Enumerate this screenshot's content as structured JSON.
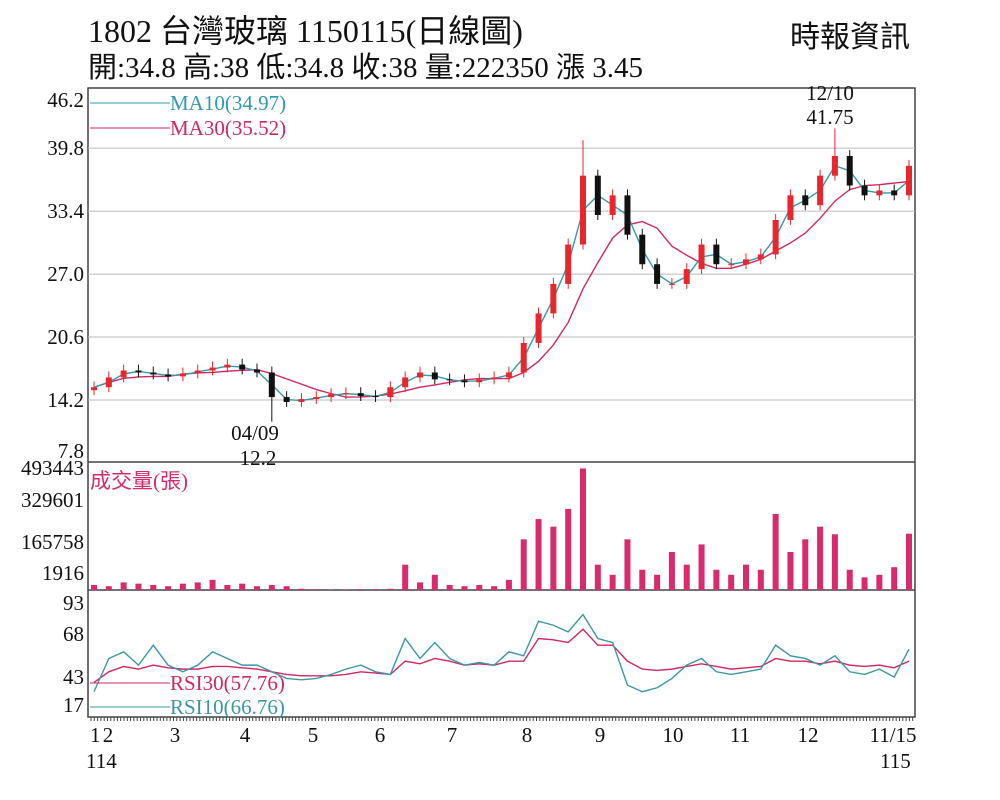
{
  "header": {
    "title": "1802  台灣玻璃 1150115(日線圖)",
    "source": "時報資訊",
    "ohlc": "開:34.8 高:38 低:34.8 收:38 量:222350 漲 3.45"
  },
  "colors": {
    "up": "#e8262c",
    "down": "#111111",
    "ma10": "#2f9ab0",
    "ma30": "#d2275f",
    "volume": "#d92a6e",
    "rsi30": "#d2275f",
    "rsi10": "#3b97a8",
    "grid": "#bbbbbb"
  },
  "chart_data": {
    "type": "candlestick",
    "price_axis": {
      "ticks": [
        "46.2",
        "39.8",
        "33.4",
        "27.0",
        "20.6",
        "14.2",
        "7.8"
      ],
      "ylim": [
        7.8,
        46.2
      ]
    },
    "volume_axis": {
      "ticks": [
        "493443",
        "329601",
        "165758",
        "1916"
      ],
      "label": "成交量(張)"
    },
    "rsi_axis": {
      "ticks": [
        "93",
        "68",
        "43",
        "17"
      ]
    },
    "x_ticks": [
      "1",
      "2",
      "3",
      "4",
      "5",
      "6",
      "7",
      "8",
      "9",
      "10",
      "11",
      "12",
      "11/15"
    ],
    "x_sub": {
      "start": "114",
      "end": "115"
    },
    "legend": {
      "ma10": "MA10(34.97)",
      "ma30": "MA30(35.52)",
      "rsi30": "RSI30(57.76)",
      "rsi10": "RSI10(66.76)"
    },
    "annotations": {
      "low_date": "04/09",
      "low_value": "12.2",
      "high_date": "12/10",
      "high_value": "41.75"
    },
    "close": [
      15.5,
      16.5,
      17.2,
      17.0,
      16.8,
      16.6,
      16.9,
      17.2,
      17.5,
      17.8,
      17.3,
      17.0,
      14.5,
      14.0,
      14.3,
      14.5,
      14.8,
      14.9,
      14.6,
      14.5,
      15.5,
      16.5,
      17.0,
      16.3,
      16.2,
      16.0,
      16.3,
      16.5,
      17.0,
      20,
      23,
      26,
      30,
      37,
      33,
      35,
      31,
      28,
      26,
      26,
      27.5,
      30,
      28,
      28,
      28.5,
      29,
      32.5,
      35,
      34,
      37,
      39,
      36,
      35,
      35.5,
      35,
      38
    ],
    "volume": [
      20000,
      15000,
      30000,
      25000,
      20000,
      15000,
      25000,
      30000,
      40000,
      20000,
      25000,
      15000,
      20000,
      15000,
      5000,
      3000,
      2000,
      2000,
      3000,
      3000,
      5000,
      100000,
      30000,
      60000,
      20000,
      15000,
      20000,
      15000,
      40000,
      200000,
      280000,
      250000,
      320000,
      480000,
      100000,
      60000,
      200000,
      80000,
      60000,
      150000,
      100000,
      180000,
      80000,
      60000,
      100000,
      80000,
      300000,
      150000,
      200000,
      250000,
      220000,
      80000,
      50000,
      60000,
      90000,
      222350
    ],
    "rsi10": [
      35,
      60,
      65,
      55,
      70,
      55,
      50,
      55,
      65,
      60,
      55,
      55,
      50,
      45,
      44,
      45,
      48,
      52,
      55,
      50,
      48,
      75,
      60,
      72,
      60,
      55,
      57,
      55,
      65,
      62,
      88,
      85,
      80,
      93,
      75,
      72,
      40,
      35,
      38,
      45,
      55,
      60,
      50,
      48,
      50,
      52,
      70,
      62,
      60,
      55,
      62,
      50,
      48,
      52,
      46,
      67
    ],
    "rsi30": [
      42,
      50,
      54,
      52,
      55,
      53,
      52,
      52,
      54,
      54,
      53,
      52,
      50,
      48,
      47,
      47,
      47,
      48,
      50,
      49,
      48,
      58,
      56,
      60,
      58,
      55,
      56,
      55,
      58,
      58,
      75,
      74,
      72,
      82,
      70,
      70,
      58,
      52,
      51,
      52,
      54,
      56,
      54,
      52,
      53,
      54,
      60,
      58,
      58,
      56,
      58,
      55,
      54,
      55,
      53,
      58
    ]
  }
}
